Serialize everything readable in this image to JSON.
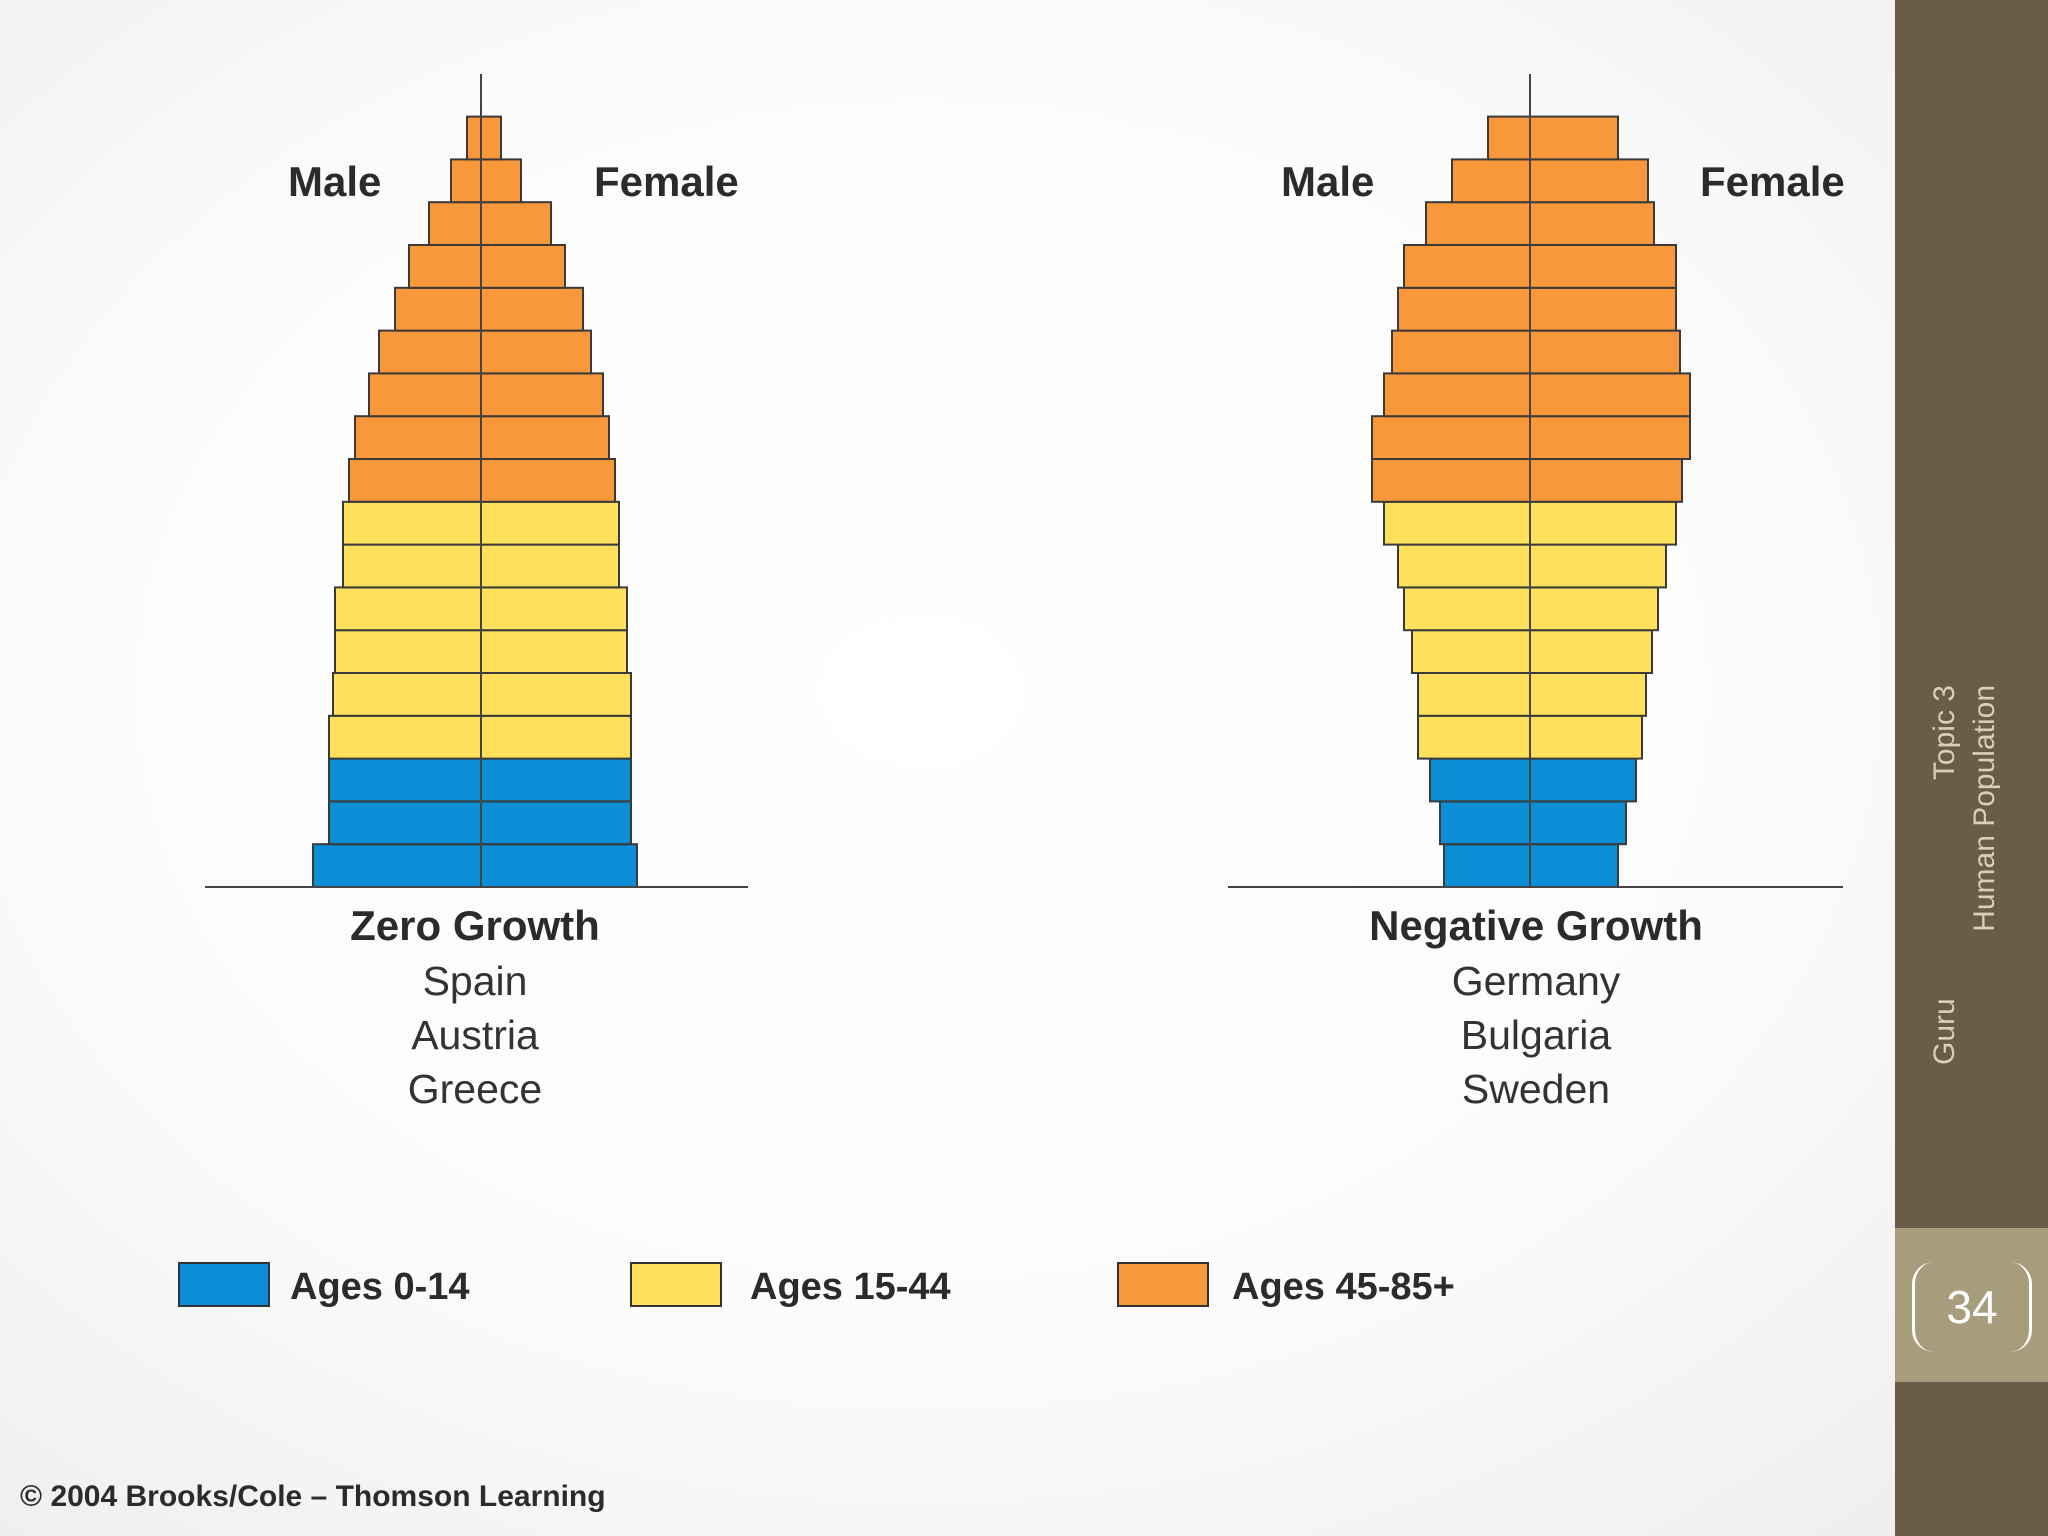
{
  "chart_data": [
    {
      "type": "bar",
      "subtype": "population-pyramid",
      "title": "Zero Growth",
      "countries": [
        "Spain",
        "Austria",
        "Greece"
      ],
      "left_label": "Male",
      "right_label": "Female",
      "groups_bottom_to_top": [
        "Ages 0-14",
        "Ages 0-14",
        "Ages 0-14",
        "Ages 15-44",
        "Ages 15-44",
        "Ages 15-44",
        "Ages 15-44",
        "Ages 15-44",
        "Ages 15-44",
        "Ages 45-85+",
        "Ages 45-85+",
        "Ages 45-85+",
        "Ages 45-85+",
        "Ages 45-85+",
        "Ages 45-85+",
        "Ages 45-85+",
        "Ages 45-85+",
        "Ages 45-85+"
      ],
      "male_bottom_to_top": [
        8.4,
        7.6,
        7.6,
        7.6,
        7.4,
        7.3,
        7.3,
        6.9,
        6.9,
        6.6,
        6.3,
        5.6,
        5.1,
        4.3,
        3.6,
        2.6,
        1.5,
        0.7
      ],
      "female_bottom_to_top": [
        7.8,
        7.5,
        7.5,
        7.5,
        7.5,
        7.3,
        7.3,
        6.9,
        6.9,
        6.7,
        6.4,
        6.1,
        5.5,
        5.1,
        4.2,
        3.5,
        2.0,
        1.0
      ]
    },
    {
      "type": "bar",
      "subtype": "population-pyramid",
      "title": "Negative Growth",
      "countries": [
        "Germany",
        "Bulgaria",
        "Sweden"
      ],
      "left_label": "Male",
      "right_label": "Female",
      "groups_bottom_to_top": [
        "Ages 0-14",
        "Ages 0-14",
        "Ages 0-14",
        "Ages 15-44",
        "Ages 15-44",
        "Ages 15-44",
        "Ages 15-44",
        "Ages 15-44",
        "Ages 15-44",
        "Ages 45-85+",
        "Ages 45-85+",
        "Ages 45-85+",
        "Ages 45-85+",
        "Ages 45-85+",
        "Ages 45-85+",
        "Ages 45-85+",
        "Ages 45-85+",
        "Ages 45-85+"
      ],
      "male_bottom_to_top": [
        4.3,
        4.5,
        5.0,
        5.6,
        5.6,
        5.9,
        6.3,
        6.6,
        7.3,
        7.9,
        7.9,
        7.3,
        6.9,
        6.6,
        6.3,
        5.2,
        3.9,
        2.1
      ],
      "female_bottom_to_top": [
        4.4,
        4.8,
        5.3,
        5.6,
        5.8,
        6.1,
        6.4,
        6.8,
        7.3,
        7.6,
        8.0,
        8.0,
        7.5,
        7.3,
        7.3,
        6.2,
        5.9,
        4.4
      ]
    }
  ],
  "legend": [
    {
      "label": "Ages 0-14",
      "color": "#0b8ed6"
    },
    {
      "label": "Ages 15-44",
      "color": "#fee05c"
    },
    {
      "label": "Ages 45-85+",
      "color": "#f9983a"
    }
  ],
  "copyright": "© 2004 Brooks/Cole – Thomson Learning",
  "sidebar": {
    "line1_left": "Guru",
    "line1_right": "Topic 3",
    "line2": "Human Population",
    "page_number": "34"
  }
}
